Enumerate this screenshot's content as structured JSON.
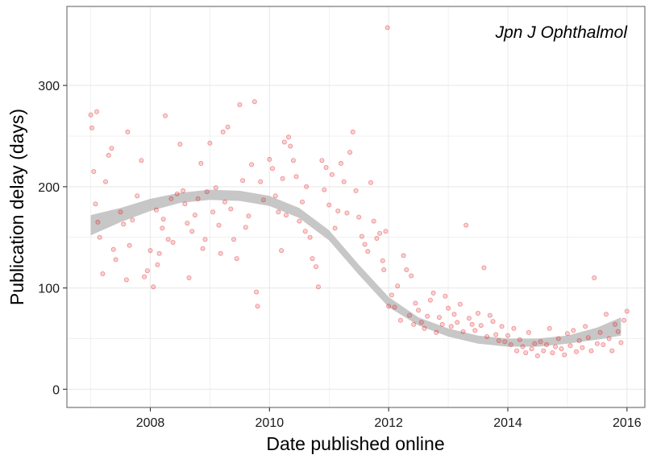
{
  "chart_data": {
    "type": "scatter",
    "title": "",
    "annotation": "Jpn J Ophthalmol",
    "xlabel": "Date published online",
    "ylabel": "Publication delay (days)",
    "x_unit": "year",
    "xlim": [
      2006.6,
      2016.3
    ],
    "ylim": [
      -18,
      378
    ],
    "x_ticks": [
      "2008",
      "2010",
      "2012",
      "2014",
      "2016"
    ],
    "y_ticks": [
      "0",
      "100",
      "200",
      "300"
    ],
    "grid": true,
    "legend": "none",
    "colors": {
      "points": "#e31a1c",
      "smooth_band": "#bdbdbd",
      "grid": "#ebebeb",
      "panel_border": "#7f7f7f"
    },
    "smooth_trend": {
      "x": [
        2007.0,
        2007.5,
        2008.0,
        2008.5,
        2009.0,
        2009.5,
        2010.0,
        2010.5,
        2011.0,
        2011.5,
        2012.0,
        2012.5,
        2013.0,
        2013.5,
        2014.0,
        2014.5,
        2015.0,
        2015.5,
        2015.9
      ],
      "y": [
        162,
        172,
        182,
        189,
        192,
        191,
        186,
        174,
        152,
        118,
        86,
        67,
        56,
        49,
        46,
        46,
        49,
        55,
        62
      ],
      "se": [
        10,
        7,
        6,
        5,
        5,
        5,
        5,
        5,
        5,
        5,
        5,
        4,
        4,
        4,
        4,
        4,
        4,
        6,
        9
      ]
    },
    "series": [
      {
        "points": [
          [
            2007.0,
            271
          ],
          [
            2007.05,
            215
          ],
          [
            2007.08,
            183
          ],
          [
            2007.12,
            165
          ],
          [
            2007.02,
            258
          ],
          [
            2007.1,
            274
          ],
          [
            2007.15,
            150
          ],
          [
            2007.2,
            114
          ],
          [
            2007.25,
            205
          ],
          [
            2007.3,
            231
          ],
          [
            2007.35,
            238
          ],
          [
            2007.38,
            138
          ],
          [
            2007.42,
            128
          ],
          [
            2007.5,
            175
          ],
          [
            2007.55,
            163
          ],
          [
            2007.6,
            108
          ],
          [
            2007.62,
            254
          ],
          [
            2007.65,
            142
          ],
          [
            2007.7,
            167
          ],
          [
            2007.78,
            191
          ],
          [
            2007.85,
            226
          ],
          [
            2007.9,
            111
          ],
          [
            2007.95,
            117
          ],
          [
            2008.0,
            137
          ],
          [
            2008.05,
            101
          ],
          [
            2008.1,
            177
          ],
          [
            2008.12,
            123
          ],
          [
            2008.15,
            134
          ],
          [
            2008.2,
            159
          ],
          [
            2008.22,
            168
          ],
          [
            2008.25,
            270
          ],
          [
            2008.3,
            148
          ],
          [
            2008.35,
            188
          ],
          [
            2008.38,
            145
          ],
          [
            2008.45,
            193
          ],
          [
            2008.5,
            242
          ],
          [
            2008.55,
            196
          ],
          [
            2008.58,
            183
          ],
          [
            2008.62,
            164
          ],
          [
            2008.65,
            110
          ],
          [
            2008.7,
            156
          ],
          [
            2008.75,
            172
          ],
          [
            2008.8,
            188
          ],
          [
            2008.85,
            223
          ],
          [
            2008.88,
            139
          ],
          [
            2008.92,
            148
          ],
          [
            2008.95,
            195
          ],
          [
            2009.0,
            243
          ],
          [
            2009.05,
            175
          ],
          [
            2009.1,
            199
          ],
          [
            2009.15,
            162
          ],
          [
            2009.18,
            134
          ],
          [
            2009.22,
            254
          ],
          [
            2009.25,
            185
          ],
          [
            2009.3,
            259
          ],
          [
            2009.35,
            178
          ],
          [
            2009.4,
            148
          ],
          [
            2009.45,
            129
          ],
          [
            2009.5,
            281
          ],
          [
            2009.55,
            206
          ],
          [
            2009.6,
            160
          ],
          [
            2009.65,
            171
          ],
          [
            2009.7,
            222
          ],
          [
            2009.75,
            284
          ],
          [
            2009.78,
            96
          ],
          [
            2009.8,
            82
          ],
          [
            2009.85,
            205
          ],
          [
            2009.9,
            187
          ],
          [
            2010.0,
            227
          ],
          [
            2010.05,
            218
          ],
          [
            2010.1,
            191
          ],
          [
            2010.15,
            175
          ],
          [
            2010.2,
            137
          ],
          [
            2010.22,
            208
          ],
          [
            2010.25,
            244
          ],
          [
            2010.28,
            172
          ],
          [
            2010.32,
            249
          ],
          [
            2010.35,
            240
          ],
          [
            2010.4,
            226
          ],
          [
            2010.45,
            210
          ],
          [
            2010.5,
            166
          ],
          [
            2010.55,
            185
          ],
          [
            2010.6,
            156
          ],
          [
            2010.62,
            200
          ],
          [
            2010.68,
            150
          ],
          [
            2010.72,
            129
          ],
          [
            2010.78,
            121
          ],
          [
            2010.82,
            101
          ],
          [
            2010.88,
            226
          ],
          [
            2010.92,
            197
          ],
          [
            2010.95,
            219
          ],
          [
            2011.0,
            182
          ],
          [
            2011.05,
            212
          ],
          [
            2011.1,
            159
          ],
          [
            2011.15,
            176
          ],
          [
            2011.2,
            223
          ],
          [
            2011.25,
            205
          ],
          [
            2011.3,
            174
          ],
          [
            2011.35,
            234
          ],
          [
            2011.4,
            254
          ],
          [
            2011.45,
            196
          ],
          [
            2011.5,
            170
          ],
          [
            2011.55,
            151
          ],
          [
            2011.6,
            143
          ],
          [
            2011.65,
            136
          ],
          [
            2011.7,
            204
          ],
          [
            2011.75,
            166
          ],
          [
            2011.8,
            149
          ],
          [
            2011.85,
            154
          ],
          [
            2011.9,
            127
          ],
          [
            2011.92,
            118
          ],
          [
            2011.95,
            156
          ],
          [
            2011.98,
            357
          ],
          [
            2012.0,
            82
          ],
          [
            2012.05,
            93
          ],
          [
            2012.1,
            81
          ],
          [
            2012.15,
            102
          ],
          [
            2012.2,
            68
          ],
          [
            2012.25,
            132
          ],
          [
            2012.3,
            118
          ],
          [
            2012.35,
            73
          ],
          [
            2012.38,
            112
          ],
          [
            2012.42,
            64
          ],
          [
            2012.45,
            85
          ],
          [
            2012.5,
            78
          ],
          [
            2012.55,
            66
          ],
          [
            2012.6,
            60
          ],
          [
            2012.65,
            72
          ],
          [
            2012.7,
            88
          ],
          [
            2012.75,
            95
          ],
          [
            2012.8,
            56
          ],
          [
            2012.85,
            71
          ],
          [
            2012.9,
            64
          ],
          [
            2012.95,
            92
          ],
          [
            2013.0,
            80
          ],
          [
            2013.05,
            62
          ],
          [
            2013.1,
            74
          ],
          [
            2013.15,
            66
          ],
          [
            2013.2,
            84
          ],
          [
            2013.25,
            57
          ],
          [
            2013.3,
            162
          ],
          [
            2013.35,
            70
          ],
          [
            2013.4,
            64
          ],
          [
            2013.45,
            58
          ],
          [
            2013.5,
            75
          ],
          [
            2013.55,
            63
          ],
          [
            2013.6,
            120
          ],
          [
            2013.65,
            52
          ],
          [
            2013.7,
            73
          ],
          [
            2013.75,
            67
          ],
          [
            2013.8,
            54
          ],
          [
            2013.85,
            48
          ],
          [
            2013.9,
            62
          ],
          [
            2013.95,
            47
          ],
          [
            2014.0,
            53
          ],
          [
            2014.05,
            44
          ],
          [
            2014.1,
            60
          ],
          [
            2014.15,
            38
          ],
          [
            2014.2,
            49
          ],
          [
            2014.25,
            42
          ],
          [
            2014.3,
            36
          ],
          [
            2014.35,
            56
          ],
          [
            2014.4,
            40
          ],
          [
            2014.45,
            45
          ],
          [
            2014.5,
            33
          ],
          [
            2014.55,
            47
          ],
          [
            2014.6,
            38
          ],
          [
            2014.65,
            44
          ],
          [
            2014.7,
            60
          ],
          [
            2014.75,
            36
          ],
          [
            2014.8,
            42
          ],
          [
            2014.85,
            50
          ],
          [
            2014.9,
            40
          ],
          [
            2014.95,
            34
          ],
          [
            2015.0,
            55
          ],
          [
            2015.05,
            43
          ],
          [
            2015.1,
            58
          ],
          [
            2015.15,
            37
          ],
          [
            2015.2,
            48
          ],
          [
            2015.25,
            41
          ],
          [
            2015.3,
            62
          ],
          [
            2015.35,
            51
          ],
          [
            2015.4,
            38
          ],
          [
            2015.45,
            110
          ],
          [
            2015.5,
            45
          ],
          [
            2015.55,
            56
          ],
          [
            2015.6,
            44
          ],
          [
            2015.65,
            74
          ],
          [
            2015.7,
            50
          ],
          [
            2015.75,
            38
          ],
          [
            2015.8,
            64
          ],
          [
            2015.85,
            57
          ],
          [
            2015.9,
            46
          ],
          [
            2015.95,
            68
          ],
          [
            2016.0,
            77
          ]
        ]
      }
    ]
  }
}
